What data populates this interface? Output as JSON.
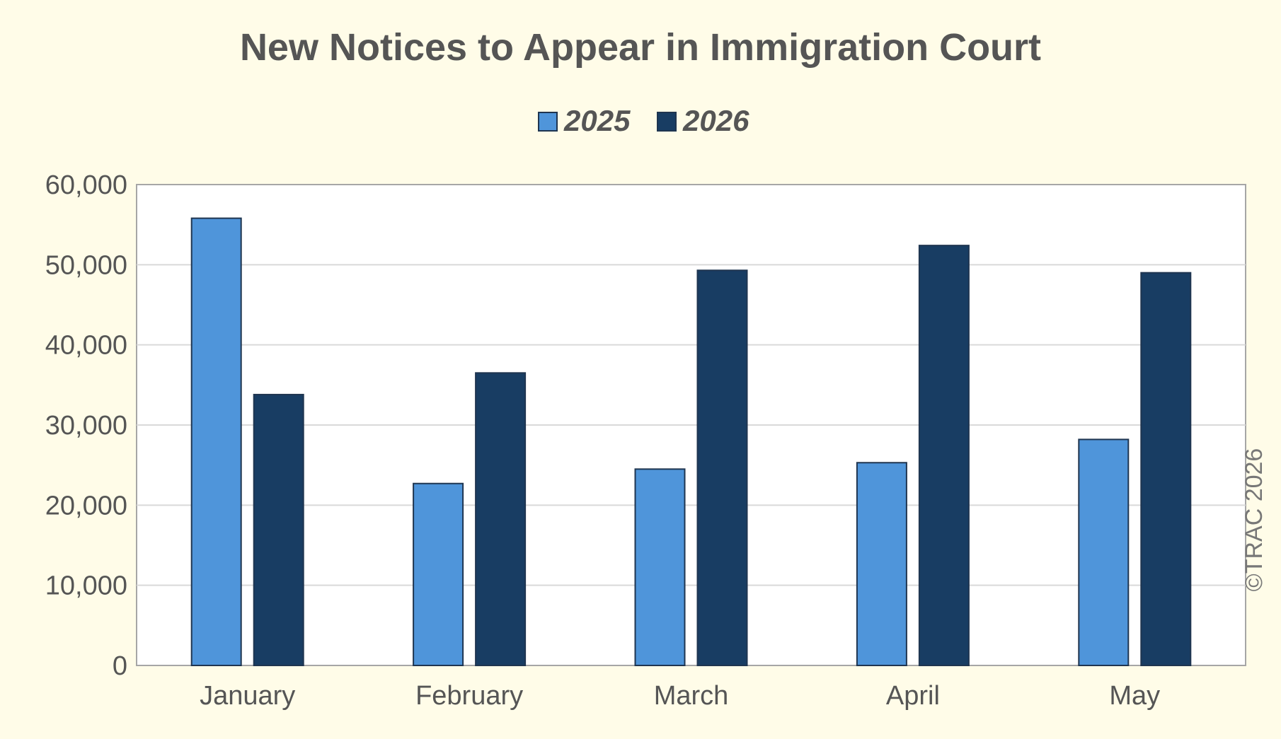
{
  "chart_data": {
    "type": "bar",
    "title": "New Notices to Appear in Immigration Court",
    "categories": [
      "January",
      "February",
      "March",
      "April",
      "May"
    ],
    "series": [
      {
        "name": "2025",
        "values": [
          55800,
          22700,
          24500,
          25300,
          28200
        ],
        "color": "#4f95da"
      },
      {
        "name": "2026",
        "values": [
          33800,
          36500,
          49300,
          52400,
          49000
        ],
        "color": "#183d63"
      }
    ],
    "ylim": [
      0,
      60000
    ],
    "yticks": [
      "0",
      "10,000",
      "20,000",
      "30,000",
      "40,000",
      "50,000",
      "60,000"
    ],
    "grid": true,
    "legend_position": "top-center",
    "xlabel": "",
    "ylabel": ""
  },
  "copyright": "©TRAC 2026",
  "colors": {
    "background": "#fffce8",
    "plot_background": "#ffffff",
    "gridline": "#d9d9d9",
    "text": "#555555"
  }
}
